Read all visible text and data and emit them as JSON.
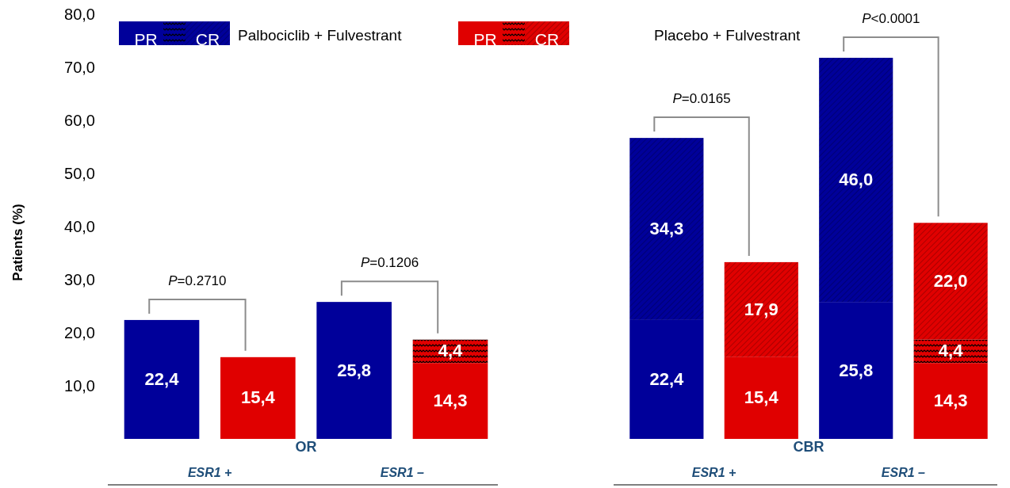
{
  "chart_data": [
    {
      "type": "bar",
      "stacked": true,
      "xlabel": "OR",
      "ylabel": "Patients (%)",
      "categories": [
        "ESR1 +",
        null,
        "ESR1 –",
        null
      ],
      "series": [
        {
          "name": "PR",
          "color": "#00009a",
          "values": [
            22.4,
            null,
            25.8,
            null
          ],
          "value_labels": [
            "22,4",
            null,
            "25,8",
            null
          ]
        },
        {
          "name": "PR",
          "color": "#e00000",
          "values": [
            null,
            15.4,
            null,
            14.3
          ],
          "value_labels": [
            null,
            "15,4",
            null,
            "14,3"
          ]
        },
        {
          "color": "#e00000",
          "values": [
            null,
            null,
            null,
            4.4
          ],
          "value_labels": [
            null,
            null,
            null,
            "4,4"
          ]
        }
      ],
      "ylim": [
        0,
        80
      ],
      "yticks": [
        {
          "value": 10,
          "label": "10,0"
        },
        {
          "value": 20,
          "label": "20,0"
        },
        {
          "value": 30,
          "label": "30,0"
        },
        {
          "value": 40,
          "label": "40,0"
        },
        {
          "value": 50,
          "label": "50,0"
        },
        {
          "value": 60,
          "label": "60,0"
        },
        {
          "value": 70,
          "label": "70,0"
        },
        {
          "value": 80,
          "label": "80,0"
        }
      ],
      "annotations": [
        "Palbociclib + Fulvestrant",
        "Placebo + Fulvestrant",
        "P=0.2710",
        "P=0.1206"
      ],
      "legend": "top",
      "grid": false
    },
    {
      "type": "bar",
      "stacked": true,
      "xlabel": "CBR",
      "categories": [
        "ESR1 +",
        null,
        "ESR1 –",
        null
      ],
      "series": [
        {
          "color": "#00009a",
          "values": [
            22.4,
            null,
            25.8,
            null
          ],
          "value_labels": [
            "22,4",
            null,
            "25,8",
            null
          ]
        },
        {
          "color": "#e00000",
          "values": [
            null,
            15.4,
            null,
            14.3
          ],
          "value_labels": [
            null,
            "15,4",
            null,
            "14,3"
          ]
        },
        {
          "color": "#e00000",
          "values": [
            null,
            null,
            null,
            4.4
          ],
          "value_labels": [
            null,
            null,
            null,
            "4,4"
          ]
        },
        {
          "name": "CR",
          "color": "#00009a",
          "values": [
            34.3,
            null,
            46.0,
            null
          ],
          "value_labels": [
            "34,3",
            null,
            "46,0",
            null
          ]
        },
        {
          "name": "CR",
          "color": "#e00000",
          "values": [
            null,
            17.9,
            null,
            22.0
          ],
          "value_labels": [
            null,
            "17,9",
            null,
            "22,0"
          ]
        }
      ],
      "ylim": [
        0,
        80
      ],
      "tick_labels": "x",
      "annotations": [
        "P=0.0165",
        "P<0.0001"
      ],
      "grid": false
    }
  ]
}
